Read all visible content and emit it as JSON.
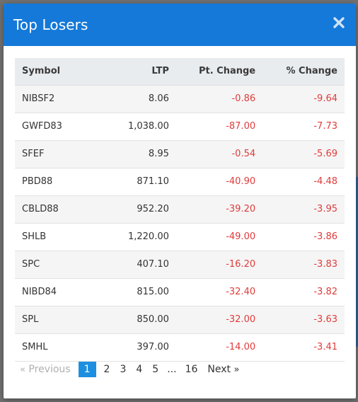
{
  "modal": {
    "title": "Top Losers",
    "close_icon": "close-icon",
    "header_color": "#1479d9"
  },
  "table": {
    "columns": {
      "symbol": "Symbol",
      "ltp": "LTP",
      "pt_change": "Pt. Change",
      "pct_change": "% Change"
    },
    "rows": [
      {
        "symbol": "NIBSF2",
        "ltp": "8.06",
        "pt_change": "-0.86",
        "pct_change": "-9.64"
      },
      {
        "symbol": "GWFD83",
        "ltp": "1,038.00",
        "pt_change": "-87.00",
        "pct_change": "-7.73"
      },
      {
        "symbol": "SFEF",
        "ltp": "8.95",
        "pt_change": "-0.54",
        "pct_change": "-5.69"
      },
      {
        "symbol": "PBD88",
        "ltp": "871.10",
        "pt_change": "-40.90",
        "pct_change": "-4.48"
      },
      {
        "symbol": "CBLD88",
        "ltp": "952.20",
        "pt_change": "-39.20",
        "pct_change": "-3.95"
      },
      {
        "symbol": "SHLB",
        "ltp": "1,220.00",
        "pt_change": "-49.00",
        "pct_change": "-3.86"
      },
      {
        "symbol": "SPC",
        "ltp": "407.10",
        "pt_change": "-16.20",
        "pct_change": "-3.83"
      },
      {
        "symbol": "NIBD84",
        "ltp": "815.00",
        "pt_change": "-32.40",
        "pct_change": "-3.82"
      },
      {
        "symbol": "SPL",
        "ltp": "850.00",
        "pt_change": "-32.00",
        "pct_change": "-3.63"
      },
      {
        "symbol": "SMHL",
        "ltp": "397.00",
        "pt_change": "-14.00",
        "pct_change": "-3.41"
      }
    ],
    "negative_color": "#e03b3b"
  },
  "pagination": {
    "prev_arrow": "«",
    "previous": "Previous",
    "pages": [
      "1",
      "2",
      "3",
      "4",
      "5"
    ],
    "ellipsis": "...",
    "last_page": "16",
    "next": "Next",
    "next_arrow": "»",
    "current": "1",
    "active_color": "#1c8fe0"
  }
}
